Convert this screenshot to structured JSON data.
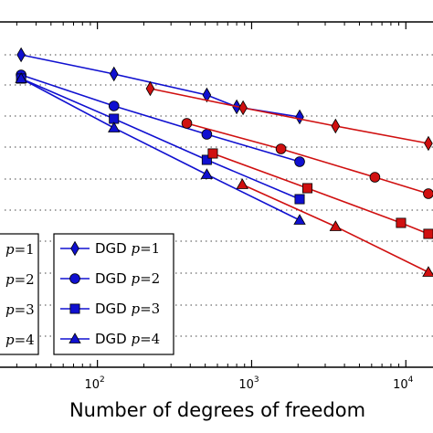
{
  "chart_data": {
    "type": "line",
    "xlabel": "Number of degrees of freedom",
    "ylabel": "",
    "title": "",
    "x_scale": "log",
    "y_scale": "log",
    "xlim": [
      25,
      15000
    ],
    "x_ticks": [
      {
        "value": 100,
        "base": "10",
        "exp": "2"
      },
      {
        "value": 1000,
        "base": "10",
        "exp": "3"
      },
      {
        "value": 10000,
        "base": "10",
        "exp": "4"
      }
    ],
    "grid": "horizontal-dotted",
    "series": [
      {
        "group": "DGD",
        "marker": "diamond",
        "color": "#1010d0",
        "x": [
          32,
          128,
          512,
          800,
          2048
        ],
        "y": [
          60,
          81,
          104,
          117,
          128
        ]
      },
      {
        "group": "DGD",
        "marker": "circle",
        "color": "#1010d0",
        "x": [
          32,
          128,
          512,
          2048
        ],
        "y": [
          82,
          116,
          147,
          177
        ]
      },
      {
        "group": "DGD",
        "marker": "square",
        "color": "#1010d0",
        "x": [
          32,
          128,
          512,
          2048
        ],
        "y": [
          86,
          130,
          175,
          218
        ]
      },
      {
        "group": "DGD",
        "marker": "triangle",
        "color": "#1010d0",
        "x": [
          32,
          128,
          512,
          2048
        ],
        "y": [
          86,
          140,
          191,
          241
        ]
      },
      {
        "group": "red",
        "marker": "diamond",
        "color": "#d01010",
        "x": [
          220,
          880,
          3500,
          14000
        ],
        "y": [
          97,
          118,
          138,
          157
        ]
      },
      {
        "group": "red",
        "marker": "circle",
        "color": "#d01010",
        "x": [
          380,
          1550,
          6300,
          14000
        ],
        "y": [
          135,
          163,
          194,
          212
        ]
      },
      {
        "group": "red",
        "marker": "square",
        "color": "#d01010",
        "x": [
          560,
          2300,
          9300,
          14000
        ],
        "y": [
          168,
          206,
          244,
          256
        ]
      },
      {
        "group": "red",
        "marker": "triangle",
        "color": "#d01010",
        "x": [
          870,
          3500,
          14000
        ],
        "y": [
          202,
          248,
          298
        ]
      }
    ],
    "legend_left": {
      "placement": "bottom-left (cropped)",
      "entries": [
        {
          "label": "p = 1",
          "marker": "diamond"
        },
        {
          "label": "p = 2",
          "marker": "circle"
        },
        {
          "label": "p = 3",
          "marker": "square"
        },
        {
          "label": "p = 4",
          "marker": "triangle"
        }
      ]
    },
    "legend_right": {
      "placement": "bottom-center",
      "entries": [
        {
          "prefix": "DGD",
          "label": "p = 1",
          "marker": "diamond",
          "color": "#1010d0"
        },
        {
          "prefix": "DGD",
          "label": "p = 2",
          "marker": "circle",
          "color": "#1010d0"
        },
        {
          "prefix": "DGD",
          "label": "p = 3",
          "marker": "square",
          "color": "#1010d0"
        },
        {
          "prefix": "DGD",
          "label": "p = 4",
          "marker": "triangle",
          "color": "#1010d0"
        }
      ]
    }
  }
}
